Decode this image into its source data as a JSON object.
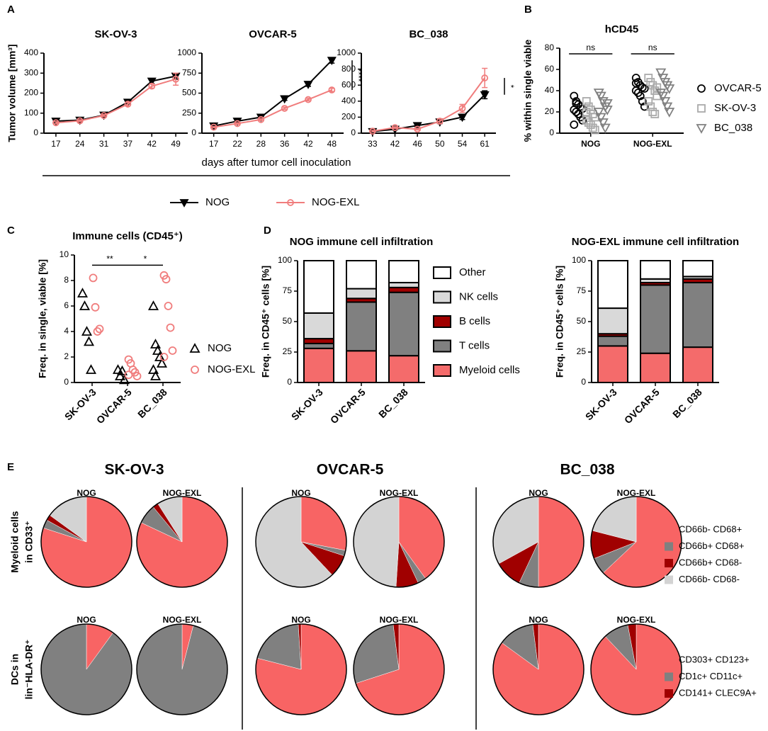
{
  "panel_letters": [
    "A",
    "B",
    "C",
    "D",
    "E"
  ],
  "chart_data": [
    {
      "type": "line",
      "title": "SK-OV-3",
      "ylabel": "Tumor volume [mm³]",
      "xlabel": "days after tumor cell inoculation",
      "legend": "bottom",
      "categories": [
        17,
        24,
        31,
        37,
        42,
        49
      ],
      "ylim": [
        0,
        400
      ],
      "yticks": [
        0,
        100,
        200,
        300,
        400
      ],
      "series": [
        {
          "name": "NOG",
          "color": "#000000",
          "marker": "triangle-down",
          "filled": true,
          "values": [
            60,
            65,
            90,
            155,
            260,
            285
          ],
          "errors": [
            5,
            5,
            5,
            8,
            12,
            15
          ]
        },
        {
          "name": "NOG-EXL",
          "color": "#f07d7d",
          "marker": "circle",
          "filled": false,
          "values": [
            52,
            62,
            88,
            145,
            235,
            270
          ],
          "errors": [
            5,
            5,
            5,
            8,
            10,
            30
          ]
        }
      ]
    },
    {
      "type": "line",
      "title": "OVCAR-5",
      "annotation": "****",
      "categories": [
        17,
        22,
        28,
        36,
        42,
        48
      ],
      "ylim": [
        0,
        1000
      ],
      "yticks": [
        0,
        250,
        500,
        750,
        1000
      ],
      "series": [
        {
          "name": "NOG",
          "color": "#000000",
          "marker": "triangle-down",
          "filled": true,
          "values": [
            90,
            150,
            200,
            430,
            610,
            910
          ],
          "errors": [
            10,
            10,
            15,
            20,
            25,
            35
          ]
        },
        {
          "name": "NOG-EXL",
          "color": "#f07d7d",
          "marker": "circle",
          "filled": false,
          "values": [
            75,
            120,
            170,
            310,
            420,
            540
          ],
          "errors": [
            8,
            10,
            12,
            15,
            15,
            20
          ]
        }
      ]
    },
    {
      "type": "line",
      "title": "BC_038",
      "annotation": "*",
      "categories": [
        33,
        42,
        46,
        50,
        54,
        61
      ],
      "ylim": [
        0,
        1000
      ],
      "yticks": [
        0,
        200,
        400,
        600,
        800,
        1000
      ],
      "series": [
        {
          "name": "NOG",
          "color": "#000000",
          "marker": "triangle-down",
          "filled": true,
          "values": [
            20,
            50,
            95,
            140,
            200,
            480
          ],
          "errors": [
            10,
            10,
            20,
            20,
            30,
            50
          ]
        },
        {
          "name": "NOG-EXL",
          "color": "#f07d7d",
          "marker": "circle",
          "filled": false,
          "values": [
            25,
            70,
            50,
            150,
            310,
            690
          ],
          "errors": [
            10,
            10,
            10,
            30,
            50,
            120
          ]
        }
      ]
    },
    {
      "type": "strip",
      "title": "hCD45",
      "ylabel": "% within single viable",
      "legend": "right",
      "annotations": [
        "ns",
        "ns"
      ],
      "categories": [
        "NOG",
        "NOG-EXL"
      ],
      "ylim": [
        0,
        80
      ],
      "yticks": [
        0,
        20,
        40,
        60,
        80
      ],
      "series": [
        {
          "name": "OVCAR-5",
          "color": "#000000",
          "marker": "circle",
          "values": [
            [
              35,
              30,
              27,
              25,
              23,
              22,
              20,
              18,
              15,
              12,
              8,
              28
            ],
            [
              52,
              48,
              45,
              43,
              42,
              40,
              38,
              35,
              30,
              25,
              47
            ]
          ]
        },
        {
          "name": "SK-OV-3",
          "color": "#aaaaaa",
          "marker": "square",
          "values": [
            [
              30,
              25,
              22,
              18,
              15,
              12,
              10,
              8,
              5,
              3,
              20
            ],
            [
              52,
              48,
              45,
              40,
              35,
              30,
              25,
              20,
              18,
              43
            ]
          ]
        },
        {
          "name": "BC_038",
          "color": "#808080",
          "marker": "triangle-down",
          "values": [
            [
              38,
              35,
              30,
              25,
              22,
              20,
              15,
              10,
              5,
              28
            ],
            [
              57,
              52,
              48,
              45,
              42,
              38,
              35,
              30,
              25,
              20
            ]
          ]
        }
      ]
    },
    {
      "type": "strip",
      "title": "Immune cells (CD45⁺)",
      "ylabel": "Freq. in single, viable [%]",
      "legend": "right",
      "annotations": [
        "**",
        "*"
      ],
      "categories": [
        "SK-OV-3",
        "OVCAR-5",
        "BC_038"
      ],
      "ylim": [
        0,
        10
      ],
      "yticks": [
        0,
        2,
        4,
        6,
        8,
        10
      ],
      "series": [
        {
          "name": "NOG",
          "color": "#000000",
          "marker": "triangle-up",
          "values": [
            [
              7,
              6,
              4,
              3.2,
              1
            ],
            [
              1,
              0.5,
              0.9,
              0.2
            ],
            [
              6,
              3,
              2.5,
              2,
              1.5,
              1,
              0.5
            ]
          ]
        },
        {
          "name": "NOG-EXL",
          "color": "#f07d7d",
          "marker": "circle",
          "values": [
            [
              8.2,
              5.9,
              4,
              4.2
            ],
            [
              1.8,
              1.5,
              1,
              0.8,
              0.5,
              0.6
            ],
            [
              8.4,
              8.1,
              6,
              4.3,
              2.5,
              2
            ]
          ]
        }
      ]
    },
    {
      "type": "stacked_bar",
      "title": "NOG immune cell infiltration",
      "ylabel": "Freq. in CD45⁺ cells [%]",
      "legend": "right",
      "categories": [
        "SK-OV-3",
        "OVCAR-5",
        "BC_038"
      ],
      "ylim": [
        0,
        100
      ],
      "yticks": [
        0,
        25,
        50,
        75,
        100
      ],
      "series": [
        {
          "name": "Myeloid cells",
          "color": "#f46b6b",
          "values": [
            28,
            26,
            22
          ]
        },
        {
          "name": "T cells",
          "color": "#808080",
          "values": [
            4,
            40,
            52
          ]
        },
        {
          "name": "B cells",
          "color": "#a00000",
          "values": [
            4,
            3,
            4
          ]
        },
        {
          "name": "NK cells",
          "color": "#d9d9d9",
          "values": [
            21,
            8,
            4
          ]
        },
        {
          "name": "Other",
          "color": "#ffffff",
          "values": [
            43,
            23,
            18
          ]
        }
      ]
    },
    {
      "type": "stacked_bar",
      "title": "NOG-EXL immune cell infiltration",
      "ylabel": "Freq. in CD45⁺ cells [%]",
      "categories": [
        "SK-OV-3",
        "OVCAR-5",
        "BC_038"
      ],
      "ylim": [
        0,
        100
      ],
      "yticks": [
        0,
        25,
        50,
        75,
        100
      ],
      "series": [
        {
          "color": "#f46b6b",
          "values": [
            30,
            24,
            29
          ]
        },
        {
          "color": "#808080",
          "values": [
            8,
            56,
            53
          ]
        },
        {
          "color": "#a00000",
          "values": [
            2,
            2,
            3
          ]
        },
        {
          "color": "#d9d9d9",
          "values": [
            21,
            3,
            2
          ]
        },
        {
          "color": "#ffffff",
          "values": [
            39,
            15,
            13
          ]
        }
      ]
    },
    {
      "type": "pie_row",
      "column_titles": [
        "SK-OV-3",
        "OVCAR-5",
        "BC_038"
      ],
      "row_label": [
        "Myeloid cells",
        "in CD33⁺"
      ],
      "labels": [
        "CD66b- CD68+",
        "CD66b+ CD68+",
        "CD66b+ CD68-",
        "CD66b- CD68-"
      ],
      "colors": [
        "#f86464",
        "#808080",
        "#a00000",
        "#d3d3d3"
      ],
      "pies": [
        {
          "title": "NOG",
          "values": [
            80,
            3,
            2,
            15
          ]
        },
        {
          "title": "NOG-EXL",
          "values": [
            82,
            7,
            2,
            9
          ]
        },
        {
          "title": "NOG",
          "values": [
            28,
            2,
            8,
            62
          ]
        },
        {
          "title": "NOG-EXL",
          "values": [
            40,
            3,
            8,
            49
          ]
        },
        {
          "title": "NOG",
          "values": [
            50,
            7,
            10,
            33
          ]
        },
        {
          "title": "NOG-EXL",
          "values": [
            63,
            6,
            10,
            21
          ]
        }
      ]
    },
    {
      "type": "pie_row",
      "row_label": [
        "DCs in",
        "lin⁻HLA-DR⁺"
      ],
      "labels": [
        "CD303+ CD123+",
        "CD1c+ CD11c+",
        "CD141+ CLEC9A+"
      ],
      "colors": [
        "#f86464",
        "#808080",
        "#a00000"
      ],
      "pies": [
        {
          "title": "NOG",
          "values": [
            10,
            90,
            0
          ]
        },
        {
          "title": "NOG-EXL",
          "values": [
            4,
            96,
            0
          ]
        },
        {
          "title": "NOG",
          "values": [
            79,
            20,
            1
          ]
        },
        {
          "title": "NOG-EXL",
          "values": [
            70,
            28,
            2
          ]
        },
        {
          "title": "NOG",
          "values": [
            85,
            13,
            2
          ]
        },
        {
          "title": "NOG-EXL",
          "values": [
            88,
            9,
            3
          ]
        }
      ]
    }
  ]
}
